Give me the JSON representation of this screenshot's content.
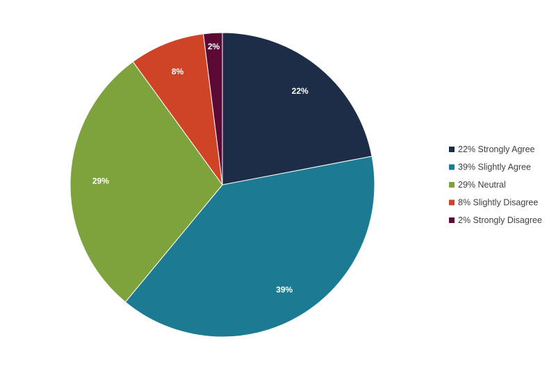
{
  "chart_data": {
    "type": "pie",
    "title": "",
    "legend_position": "right",
    "start_angle_deg": 0,
    "direction": "clockwise",
    "slices": [
      {
        "label": "22% Strongly Agree",
        "value": 22,
        "data_label": "22%",
        "color": "#1d2d48"
      },
      {
        "label": "39% Slightly Agree",
        "value": 39,
        "data_label": "39%",
        "color": "#1c7b93"
      },
      {
        "label": "29% Neutral",
        "value": 29,
        "data_label": "29%",
        "color": "#7ea33d"
      },
      {
        "label": "8% Slightly Disagree",
        "value": 8,
        "data_label": "8%",
        "color": "#cf4426"
      },
      {
        "label": "2% Strongly Disagree",
        "value": 2,
        "data_label": "2%",
        "color": "#5c0a35"
      }
    ]
  }
}
